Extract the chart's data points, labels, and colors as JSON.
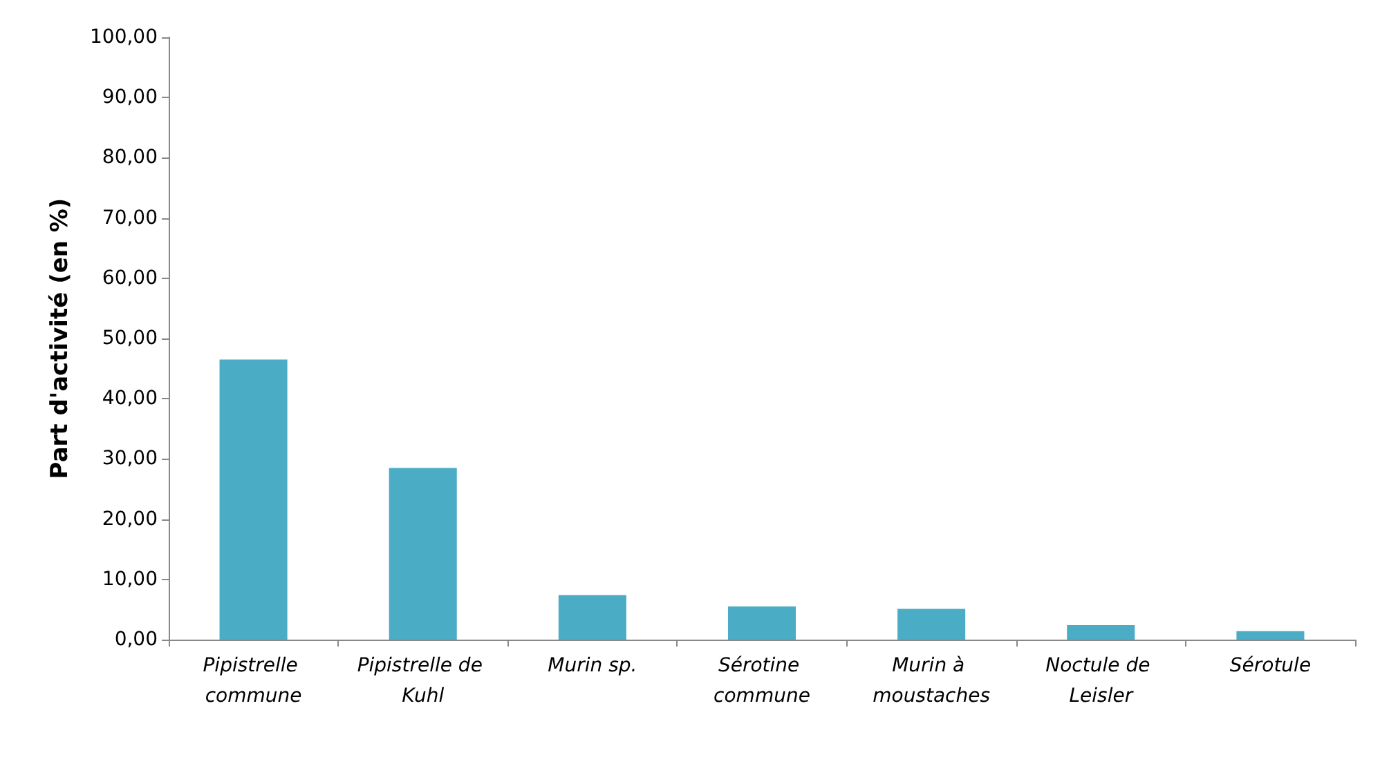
{
  "chart_data": {
    "type": "bar",
    "ylabel": "Part d'activité (en %)",
    "categories": [
      "Pipistrelle commune",
      "Pipistrelle de Kuhl",
      "Murin sp.",
      "Sérotine commune",
      "Murin à moustaches",
      "Noctule de Leisler",
      "Sérotule"
    ],
    "values": [
      46.5,
      28.5,
      7.4,
      5.5,
      5.1,
      2.4,
      1.4
    ],
    "color": "#4bacc6",
    "ylim": [
      0,
      100
    ],
    "yticks": [
      {
        "value": 0,
        "label": "0,00"
      },
      {
        "value": 10,
        "label": "10,00"
      },
      {
        "value": 20,
        "label": "20,00"
      },
      {
        "value": 30,
        "label": "30,00"
      },
      {
        "value": 40,
        "label": "40,00"
      },
      {
        "value": 50,
        "label": "50,00"
      },
      {
        "value": 60,
        "label": "60,00"
      },
      {
        "value": 70,
        "label": "70,00"
      },
      {
        "value": 80,
        "label": "80,00"
      },
      {
        "value": 90,
        "label": "90,00"
      },
      {
        "value": 100,
        "label": "100,00"
      }
    ],
    "grid": false
  }
}
